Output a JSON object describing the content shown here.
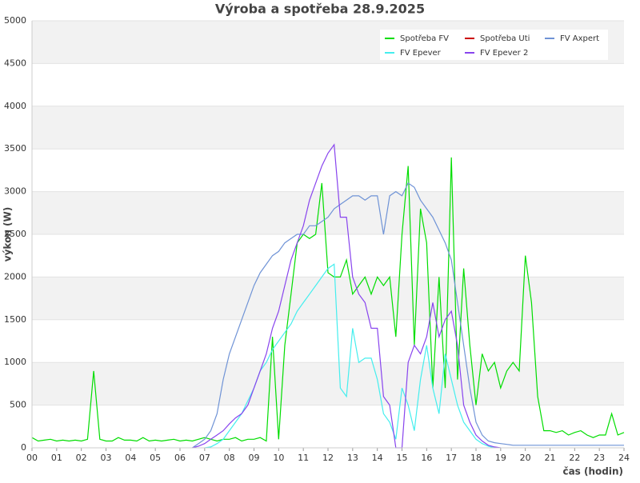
{
  "chart_data": {
    "type": "line",
    "title": "Výroba a spotřeba 28.9.2025",
    "y_label": "výkon (W)",
    "x_label": "čas (hodin)",
    "grid": "bands",
    "legend": "top-right",
    "xlim": [
      0,
      24
    ],
    "ylim": [
      0,
      5000
    ],
    "yticks": [
      0,
      500,
      1000,
      1500,
      2000,
      2500,
      3000,
      3500,
      4000,
      4500,
      5000
    ],
    "xticks": [
      {
        "value": 0,
        "label": "00"
      },
      {
        "value": 1,
        "label": "01"
      },
      {
        "value": 2,
        "label": "02"
      },
      {
        "value": 3,
        "label": "03"
      },
      {
        "value": 4,
        "label": "04"
      },
      {
        "value": 5,
        "label": "05"
      },
      {
        "value": 6,
        "label": "06"
      },
      {
        "value": 7,
        "label": "07"
      },
      {
        "value": 8,
        "label": "08"
      },
      {
        "value": 9,
        "label": "09"
      },
      10,
      11,
      12,
      13,
      14,
      15,
      16,
      17,
      18,
      19,
      20,
      21,
      22,
      23,
      24
    ],
    "x": [
      0,
      0.25,
      0.5,
      0.75,
      1,
      1.25,
      1.5,
      1.75,
      2,
      2.25,
      2.5,
      2.75,
      3,
      3.25,
      3.5,
      3.75,
      4,
      4.25,
      4.5,
      4.75,
      5,
      5.25,
      5.5,
      5.75,
      6,
      6.25,
      6.5,
      6.75,
      7,
      7.25,
      7.5,
      7.75,
      8,
      8.25,
      8.5,
      8.75,
      9,
      9.25,
      9.5,
      9.75,
      10,
      10.25,
      10.5,
      10.75,
      11,
      11.25,
      11.5,
      11.75,
      12,
      12.25,
      12.5,
      12.75,
      13,
      13.25,
      13.5,
      13.75,
      14,
      14.25,
      14.5,
      14.75,
      15,
      15.25,
      15.5,
      15.75,
      16,
      16.25,
      16.5,
      16.75,
      17,
      17.25,
      17.5,
      17.75,
      18,
      18.25,
      18.5,
      18.75,
      19,
      19.25,
      19.5,
      19.75,
      20,
      20.25,
      20.5,
      20.75,
      21,
      21.25,
      21.5,
      21.75,
      22,
      22.25,
      22.5,
      22.75,
      23,
      23.25,
      23.5,
      23.75,
      24
    ],
    "series": [
      {
        "name": "Spotřeba FV",
        "color": "#00dd00",
        "values": [
          120,
          80,
          90,
          100,
          80,
          90,
          80,
          90,
          80,
          100,
          900,
          100,
          80,
          80,
          120,
          90,
          90,
          80,
          120,
          80,
          90,
          80,
          90,
          100,
          80,
          90,
          80,
          100,
          120,
          100,
          80,
          100,
          100,
          120,
          80,
          100,
          100,
          120,
          80,
          1300,
          100,
          1200,
          1800,
          2400,
          2500,
          2450,
          2500,
          3100,
          2050,
          2000,
          2000,
          2200,
          1800,
          1900,
          2000,
          1800,
          2000,
          1900,
          2000,
          1300,
          2500,
          3300,
          1200,
          2800,
          2400,
          700,
          2000,
          700,
          3400,
          800,
          2100,
          1200,
          500,
          1100,
          900,
          1000,
          700,
          900,
          1000,
          900,
          2250,
          1700,
          600,
          200,
          200,
          180,
          200,
          150,
          180,
          200,
          150,
          120,
          150,
          150,
          400,
          150,
          180
        ]
      },
      {
        "name": "Spotřeba Uti",
        "color": "#cc0000",
        "values": [
          null,
          null,
          null,
          null,
          null,
          null,
          null,
          null,
          null,
          null,
          null,
          null,
          null,
          null,
          null,
          null,
          null,
          null,
          null,
          null,
          null,
          null,
          null,
          null,
          null,
          null,
          null,
          null,
          null,
          null,
          null,
          null,
          null,
          null,
          null,
          null,
          null,
          null,
          null,
          null,
          null,
          null,
          null,
          null,
          null,
          null,
          null,
          null,
          null,
          null,
          null,
          null,
          null,
          null,
          null,
          null,
          null,
          null,
          null,
          null,
          null,
          null,
          null,
          null,
          null,
          null,
          null,
          null,
          null,
          null,
          null,
          null,
          null,
          null,
          null,
          null,
          null,
          null,
          null,
          null,
          null,
          null,
          null,
          null,
          null,
          null,
          null,
          null,
          null,
          null,
          null,
          null,
          null,
          null,
          null,
          null,
          null
        ]
      },
      {
        "name": "FV Axpert",
        "color": "#6f93d6",
        "values": [
          null,
          null,
          null,
          null,
          null,
          null,
          null,
          null,
          null,
          null,
          null,
          null,
          null,
          null,
          null,
          null,
          null,
          null,
          null,
          null,
          null,
          null,
          null,
          null,
          null,
          null,
          0,
          50,
          100,
          200,
          400,
          800,
          1100,
          1300,
          1500,
          1700,
          1900,
          2050,
          2150,
          2250,
          2300,
          2400,
          2450,
          2500,
          2500,
          2600,
          2600,
          2650,
          2700,
          2800,
          2850,
          2900,
          2950,
          2950,
          2900,
          2950,
          2950,
          2500,
          2950,
          3000,
          2950,
          3100,
          3050,
          2900,
          2800,
          2700,
          2550,
          2400,
          2200,
          1700,
          1200,
          700,
          300,
          150,
          80,
          60,
          50,
          40,
          30,
          30,
          30,
          30,
          30,
          30,
          30,
          30,
          30,
          30,
          30,
          30,
          30,
          30,
          30,
          30,
          30,
          30,
          30
        ]
      },
      {
        "name": "FV Epever",
        "color": "#44eeee",
        "values": [
          null,
          null,
          null,
          null,
          null,
          null,
          null,
          null,
          null,
          null,
          null,
          null,
          null,
          null,
          null,
          null,
          null,
          null,
          null,
          null,
          null,
          null,
          null,
          null,
          null,
          null,
          null,
          null,
          0,
          10,
          50,
          100,
          200,
          300,
          400,
          550,
          700,
          900,
          1000,
          1150,
          1250,
          1350,
          1450,
          1600,
          1700,
          1800,
          1900,
          2000,
          2100,
          2150,
          700,
          600,
          1400,
          1000,
          1050,
          1050,
          800,
          400,
          300,
          100,
          700,
          500,
          200,
          800,
          1200,
          700,
          400,
          1100,
          800,
          500,
          300,
          200,
          100,
          50,
          20,
          0,
          null,
          null,
          null,
          null,
          null,
          null,
          null,
          null,
          null,
          null,
          null,
          null,
          null,
          null,
          null,
          null,
          null,
          null,
          null,
          null,
          null
        ]
      },
      {
        "name": "FV Epever 2",
        "color": "#8844ee",
        "values": [
          null,
          null,
          null,
          null,
          null,
          null,
          null,
          null,
          null,
          null,
          null,
          null,
          null,
          null,
          null,
          null,
          null,
          null,
          null,
          null,
          null,
          null,
          null,
          null,
          null,
          null,
          0,
          20,
          50,
          100,
          150,
          200,
          280,
          350,
          400,
          500,
          700,
          900,
          1100,
          1400,
          1600,
          1900,
          2200,
          2400,
          2600,
          2900,
          3100,
          3300,
          3450,
          3550,
          2700,
          2700,
          2000,
          1800,
          1700,
          1400,
          1400,
          600,
          500,
          0,
          0,
          1000,
          1200,
          1100,
          1300,
          1700,
          1300,
          1500,
          1600,
          1200,
          500,
          300,
          150,
          80,
          30,
          10,
          0,
          null,
          null,
          null,
          null,
          null,
          null,
          null,
          null,
          null,
          null,
          null,
          null,
          null,
          null,
          null,
          null,
          null,
          null,
          null,
          null
        ]
      }
    ]
  }
}
